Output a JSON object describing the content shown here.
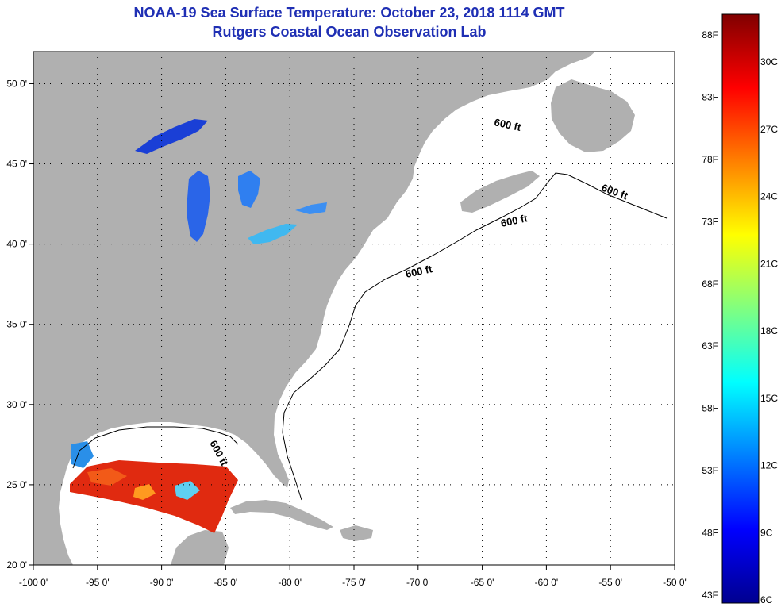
{
  "header": {
    "title": "NOAA-19 Sea Surface Temperature:  October 23, 2018 1114 GMT",
    "subtitle": "Rutgers Coastal Ocean Observation Lab"
  },
  "map": {
    "lon_range": [
      -100,
      -50
    ],
    "lat_range": [
      20,
      52
    ],
    "lon_ticks": [
      {
        "value": -100,
        "label": "-100 0'"
      },
      {
        "value": -95,
        "label": "-95 0'"
      },
      {
        "value": -90,
        "label": "-90 0'"
      },
      {
        "value": -85,
        "label": "-85 0'"
      },
      {
        "value": -80,
        "label": "-80 0'"
      },
      {
        "value": -75,
        "label": "-75 0'"
      },
      {
        "value": -70,
        "label": "-70 0'"
      },
      {
        "value": -65,
        "label": "-65 0'"
      },
      {
        "value": -60,
        "label": "-60 0'"
      },
      {
        "value": -55,
        "label": "-55 0'"
      },
      {
        "value": -50,
        "label": "-50 0'"
      }
    ],
    "lat_ticks": [
      {
        "value": 50,
        "label": "50 0'"
      },
      {
        "value": 45,
        "label": "45 0'"
      },
      {
        "value": 40,
        "label": "40 0'"
      },
      {
        "value": 35,
        "label": "35 0'"
      },
      {
        "value": 30,
        "label": "30 0'"
      },
      {
        "value": 25,
        "label": "25 0'"
      },
      {
        "value": 20,
        "label": "20 0'"
      }
    ],
    "contour_label": "600 ft",
    "colors": {
      "land": "#b0b0b0",
      "ocean": "#ffffff",
      "gulf_warm": "#e02a10",
      "lakes_cold": "#1a3fd6"
    }
  },
  "colorbar": {
    "colors": [
      "#00008f",
      "#0000ff",
      "#0080ff",
      "#00ffff",
      "#80ff80",
      "#ffff00",
      "#ff8000",
      "#ff0000",
      "#800000"
    ],
    "f_labels": [
      "88F",
      "83F",
      "78F",
      "73F",
      "68F",
      "63F",
      "58F",
      "53F",
      "48F",
      "43F"
    ],
    "c_labels": [
      "30C",
      "27C",
      "24C",
      "21C",
      "18C",
      "15C",
      "12C",
      "9C",
      "6C"
    ]
  }
}
